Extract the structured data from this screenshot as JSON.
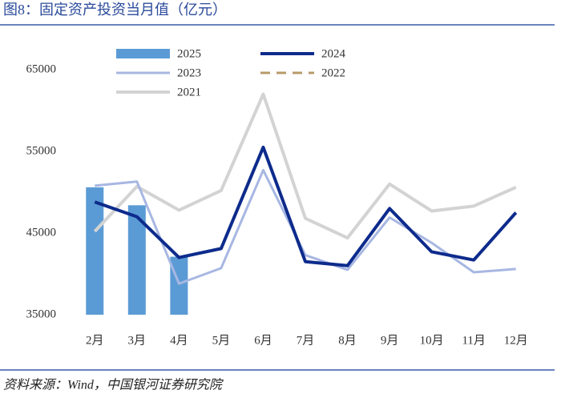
{
  "chart_data": {
    "type": "combo",
    "title": "图8：固定资产投资当月值（亿元）",
    "source": "资料来源：Wind，中国银河证券研究院",
    "categories": [
      "2月",
      "3月",
      "4月",
      "5月",
      "6月",
      "7月",
      "8月",
      "9月",
      "10月",
      "11月",
      "12月"
    ],
    "ylim": [
      35000,
      65000
    ],
    "yticks": [
      35000,
      45000,
      55000,
      65000
    ],
    "grid": false,
    "series": [
      {
        "name": "2025",
        "type": "bar",
        "color": "#5b9bd5",
        "values": [
          50600,
          48400,
          42100,
          null,
          null,
          null,
          null,
          null,
          null,
          null,
          null
        ]
      },
      {
        "name": "2024",
        "type": "line",
        "color": "#0d2b8c",
        "width": 4,
        "values": [
          48800,
          47000,
          42000,
          43100,
          55500,
          41500,
          41000,
          48000,
          42700,
          41700,
          47500
        ]
      },
      {
        "name": "2023",
        "type": "line",
        "color": "#a7b7e2",
        "width": 3,
        "values": [
          50800,
          51300,
          38800,
          40700,
          52700,
          42300,
          40500,
          46900,
          43800,
          40200,
          40600
        ]
      },
      {
        "name": "2022",
        "type": "line",
        "color": "#b89a6b",
        "width": 3,
        "style": "dashed",
        "values": [
          null,
          null,
          null,
          null,
          null,
          null,
          null,
          null,
          null,
          null,
          null
        ]
      },
      {
        "name": "2021",
        "type": "line",
        "color": "#d3d3d3",
        "width": 4,
        "values": [
          45200,
          50700,
          47800,
          50200,
          62000,
          46800,
          44400,
          51000,
          47700,
          48300,
          50600
        ]
      }
    ]
  }
}
